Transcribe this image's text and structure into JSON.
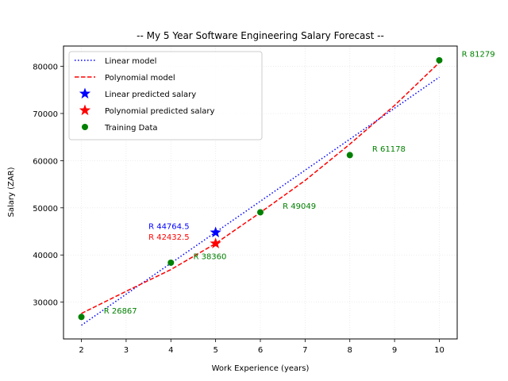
{
  "chart_data": {
    "type": "line",
    "title": "-- My 5 Year Software Engineering Salary Forecast --",
    "xlabel": "Work Experience (years)",
    "ylabel": "Salary (ZAR)",
    "xlim": [
      1.6,
      10.4
    ],
    "ylim": [
      22200,
      84300
    ],
    "xticks": [
      2,
      3,
      4,
      5,
      6,
      7,
      8,
      9,
      10
    ],
    "yticks": [
      30000,
      40000,
      50000,
      60000,
      70000,
      80000
    ],
    "grid": true,
    "legend_position": "top-left",
    "series": [
      {
        "name": "Linear model",
        "kind": "line",
        "style": "dotted",
        "color": "#0000ff",
        "x": [
          2,
          10
        ],
        "y": [
          25100,
          77700
        ]
      },
      {
        "name": "Polynomial model",
        "kind": "line",
        "style": "dashed",
        "color": "#ff0000",
        "x": [
          2,
          3,
          4,
          5,
          6,
          7,
          8,
          9,
          10
        ],
        "y": [
          27600,
          32300,
          36900,
          42432.5,
          49000,
          55800,
          63500,
          71700,
          80800
        ]
      },
      {
        "name": "Linear predicted salary",
        "kind": "star",
        "color": "#0000ff",
        "x": [
          5
        ],
        "y": [
          44764.5
        ]
      },
      {
        "name": "Polynomial predicted salary",
        "kind": "star",
        "color": "#ff0000",
        "x": [
          5
        ],
        "y": [
          42432.5
        ]
      },
      {
        "name": "Training Data",
        "kind": "scatter",
        "color": "#008000",
        "x": [
          2,
          4,
          6,
          8,
          10
        ],
        "y": [
          26867,
          38360,
          49049,
          61178,
          81279
        ]
      }
    ],
    "annotations": [
      {
        "text": "R 44764.5",
        "x": 3.5,
        "y": 45500,
        "color": "#0000ff"
      },
      {
        "text": "R 42432.5",
        "x": 3.5,
        "y": 43200,
        "color": "#ff0000"
      },
      {
        "text": "R 26867",
        "x": 2.5,
        "y": 27600,
        "color": "#008000"
      },
      {
        "text": "R 38360",
        "x": 4.5,
        "y": 39100,
        "color": "#008000"
      },
      {
        "text": "R 49049",
        "x": 6.5,
        "y": 49800,
        "color": "#008000"
      },
      {
        "text": "R 61178",
        "x": 8.5,
        "y": 61900,
        "color": "#008000"
      },
      {
        "text": "R 81279",
        "x": 10.5,
        "y": 82000,
        "color": "#008000"
      }
    ]
  }
}
